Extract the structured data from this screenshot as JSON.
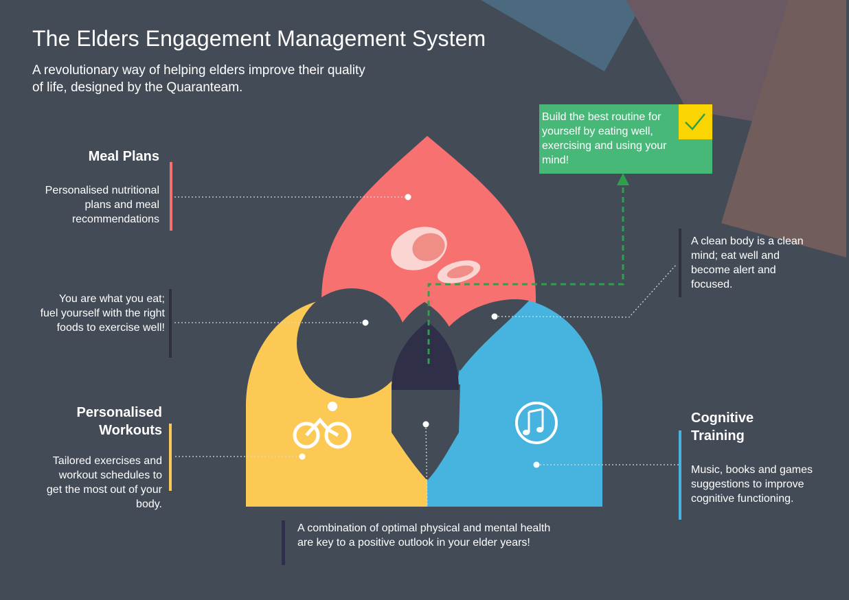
{
  "header": {
    "title": "The Elders Engagement Management System",
    "subtitle": "A revolutionary way of helping elders improve their quality of life, designed by the Quaranteam."
  },
  "meal_plans": {
    "title": "Meal Plans",
    "description": "Personalised nutritional plans and meal recommendations"
  },
  "meal_workout_overlap": {
    "text": "You are what you eat; fuel yourself with the right foods to exercise well!"
  },
  "workouts": {
    "title": "Personalised Workouts",
    "description": "Tailored exercises and workout schedules to get the most out of your body."
  },
  "meal_cognitive_overlap": {
    "text": "A clean body is a clean mind; eat well and become alert and focused."
  },
  "cognitive": {
    "title": "Cognitive Training",
    "description": "Music, books and games suggestions to improve cognitive functioning."
  },
  "combined": {
    "text": "A combination of optimal physical and mental health are key to a positive outlook in your elder years!"
  },
  "callout": {
    "text": "Build the best routine for yourself by eating well, exercising and using your mind!"
  },
  "icons": {
    "meal": "meat-icon",
    "workout": "cyclist-icon",
    "cognitive": "music-note-icon",
    "callout": "checkmark-icon"
  },
  "colors": {
    "background": "#434b57",
    "meal": "#f87171",
    "workout": "#fcc954",
    "cognitive": "#46b4de",
    "center": "#2f2f49",
    "callout": "#48b879",
    "check": "#fbd501"
  }
}
